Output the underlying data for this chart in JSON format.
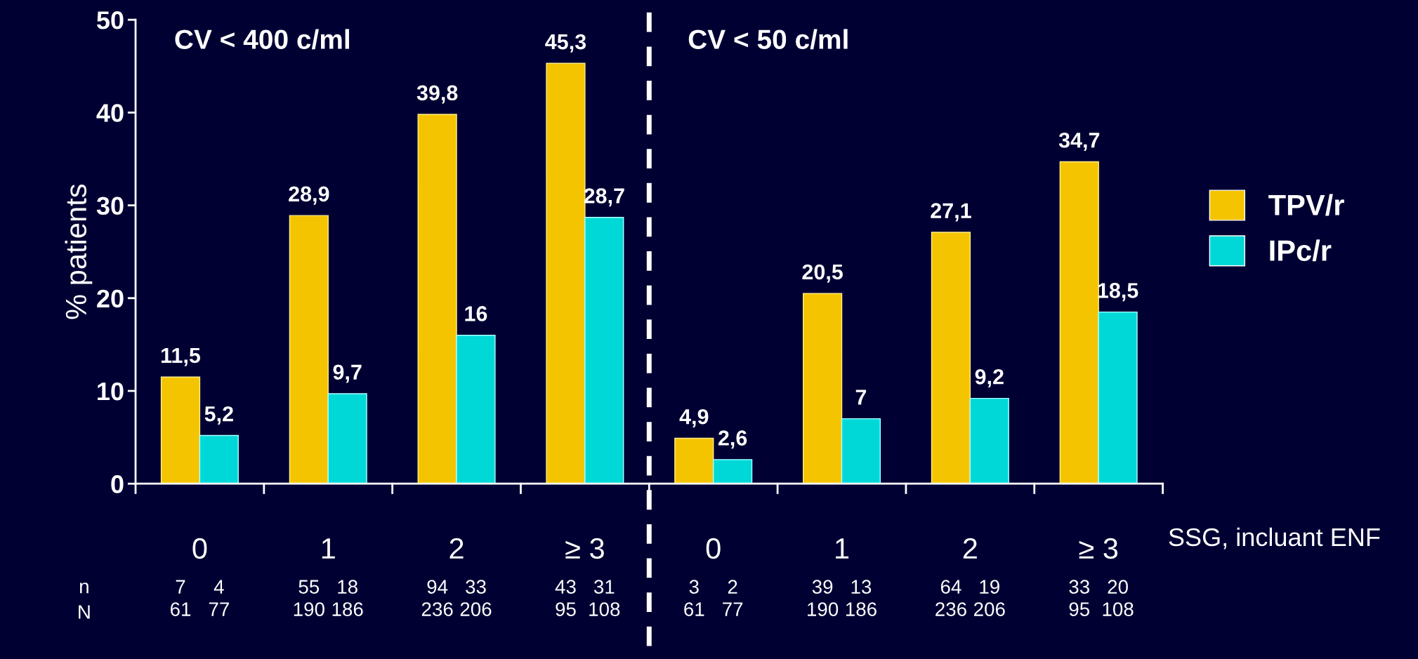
{
  "chart_data": {
    "type": "bar",
    "ylabel": "% patients",
    "xlabel": "SSG, incluant ENF",
    "categories": [
      "0",
      "1",
      "2",
      "≥ 3",
      "0",
      "1",
      "2",
      "≥ 3"
    ],
    "series": [
      {
        "name": "TPV/r",
        "color": "#f5c400",
        "values": [
          11.5,
          28.9,
          39.8,
          45.3,
          4.9,
          20.5,
          27.1,
          34.7
        ],
        "value_labels": [
          "11,5",
          "28,9",
          "39,8",
          "45,3",
          "4,9",
          "20,5",
          "27,1",
          "34,7"
        ]
      },
      {
        "name": "IPc/r",
        "color": "#00d8d8",
        "values": [
          5.2,
          9.7,
          16,
          28.7,
          2.6,
          7,
          9.2,
          18.5
        ],
        "value_labels": [
          "5,2",
          "9,7",
          "16",
          "28,7",
          "2,6",
          "7",
          "9,2",
          "18,5"
        ]
      }
    ],
    "ylim": [
      0,
      50
    ],
    "yticks": [
      0,
      10,
      20,
      30,
      40,
      50
    ],
    "grid": false,
    "legend": "right",
    "annotations": [
      "CV < 400 c/ml",
      "CV < 50 c/ml",
      "n",
      "N",
      "7\n61",
      "4\n77",
      "55\n190",
      "18\n186",
      "94\n236",
      "33\n206",
      "43\n95",
      "31\n108",
      "3\n61",
      "2\n77",
      "39\n190",
      "13\n186",
      "64\n236",
      "19\n206",
      "33\n95",
      "20\n108"
    ]
  }
}
